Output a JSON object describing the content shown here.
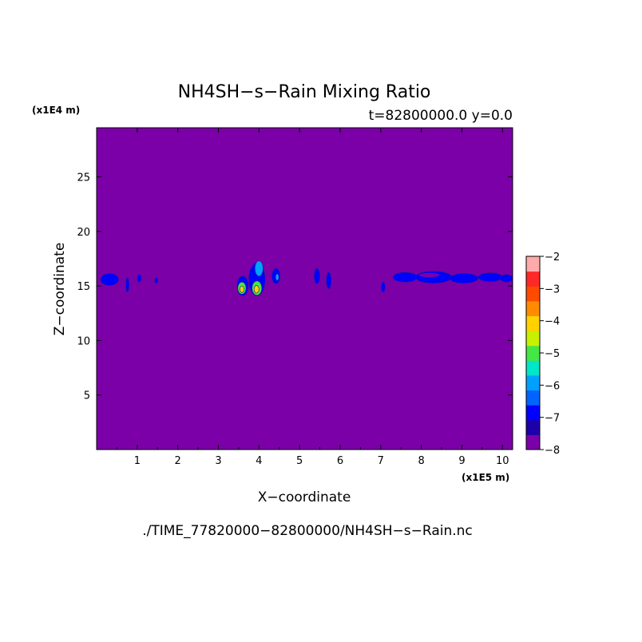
{
  "chart_data": {
    "type": "heatmap",
    "title": "NH4SH−s−Rain Mixing Ratio",
    "subtitle": "t=82800000.0 y=0.0",
    "xlabel": "X−coordinate",
    "ylabel": "Z−coordinate",
    "x_unit_label": "(x1E5 m)",
    "y_unit_label": "(x1E4 m)",
    "footer": "./TIME_77820000−82800000/NH4SH−s−Rain.nc",
    "xlim": [
      0,
      10.25
    ],
    "ylim": [
      0,
      29.5
    ],
    "xticks": [
      1,
      2,
      3,
      4,
      5,
      6,
      7,
      8,
      9,
      10
    ],
    "yticks": [
      5,
      10,
      15,
      20,
      25
    ],
    "background_level": -8,
    "colorbar": {
      "ticks": [
        -2,
        -3,
        -4,
        -5,
        -6,
        -7,
        -8
      ],
      "range": [
        -8,
        -2
      ],
      "colors": [
        "#7b00a8",
        "#1e00a8",
        "#0000ff",
        "#0064ff",
        "#00a0ff",
        "#00e6c8",
        "#46e646",
        "#c8f000",
        "#ffd200",
        "#ff8c00",
        "#ff4b00",
        "#ff2828",
        "#ffaaaa"
      ]
    },
    "features": [
      {
        "x": 0.32,
        "z": 15.6,
        "rx": 0.22,
        "rz": 0.55,
        "level": -7
      },
      {
        "x": 0.76,
        "z": 15.1,
        "rx": 0.04,
        "rz": 0.65,
        "level": -7
      },
      {
        "x": 1.05,
        "z": 15.7,
        "rx": 0.05,
        "rz": 0.35,
        "level": -7
      },
      {
        "x": 1.47,
        "z": 15.5,
        "rx": 0.04,
        "rz": 0.25,
        "level": -7
      },
      {
        "x": 3.6,
        "z": 15.0,
        "rx": 0.14,
        "rz": 0.9,
        "level": -7
      },
      {
        "x": 3.95,
        "z": 15.6,
        "rx": 0.2,
        "rz": 1.5,
        "level": -7
      },
      {
        "x": 4.0,
        "z": 16.6,
        "rx": 0.1,
        "rz": 0.7,
        "level": -6
      },
      {
        "x": 3.58,
        "z": 14.8,
        "rx": 0.1,
        "rz": 0.55,
        "level": -5
      },
      {
        "x": 3.95,
        "z": 14.8,
        "rx": 0.12,
        "rz": 0.65,
        "level": -5
      },
      {
        "x": 3.58,
        "z": 14.7,
        "rx": 0.05,
        "rz": 0.3,
        "level": -4
      },
      {
        "x": 3.94,
        "z": 14.7,
        "rx": 0.06,
        "rz": 0.35,
        "level": -4
      },
      {
        "x": 4.42,
        "z": 15.9,
        "rx": 0.1,
        "rz": 0.7,
        "level": -7
      },
      {
        "x": 4.45,
        "z": 15.8,
        "rx": 0.04,
        "rz": 0.3,
        "level": -6
      },
      {
        "x": 5.43,
        "z": 15.9,
        "rx": 0.07,
        "rz": 0.7,
        "level": -7
      },
      {
        "x": 5.72,
        "z": 15.5,
        "rx": 0.06,
        "rz": 0.75,
        "level": -7
      },
      {
        "x": 7.06,
        "z": 14.9,
        "rx": 0.05,
        "rz": 0.45,
        "level": -7
      },
      {
        "x": 7.6,
        "z": 15.8,
        "rx": 0.3,
        "rz": 0.45,
        "level": -7
      },
      {
        "x": 8.3,
        "z": 15.8,
        "rx": 0.45,
        "rz": 0.55,
        "level": -7
      },
      {
        "x": 9.05,
        "z": 15.7,
        "rx": 0.35,
        "rz": 0.45,
        "level": -7
      },
      {
        "x": 9.7,
        "z": 15.8,
        "rx": 0.3,
        "rz": 0.4,
        "level": -7
      },
      {
        "x": 10.1,
        "z": 15.7,
        "rx": 0.15,
        "rz": 0.35,
        "level": -7
      },
      {
        "x": 8.2,
        "z": 16.0,
        "rx": 0.25,
        "rz": 0.2,
        "level": -8
      }
    ]
  }
}
